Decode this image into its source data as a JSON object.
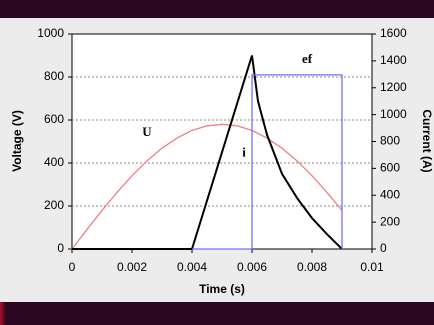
{
  "chart_data": {
    "type": "line",
    "x_label": "Time (s)",
    "y_label": "Voltage (V)",
    "y2_label": "Current (A)",
    "xlim": [
      0,
      0.01
    ],
    "xticks": [
      0,
      0.002,
      0.004,
      0.006,
      0.008,
      0.01
    ],
    "ylim": [
      0,
      1000
    ],
    "yticks": [
      0,
      200,
      400,
      600,
      800,
      1000
    ],
    "y2lim": [
      0,
      1600
    ],
    "y2ticks": [
      0,
      200,
      400,
      600,
      800,
      1000,
      1200,
      1400,
      1600
    ],
    "grid": true,
    "series": [
      {
        "name": "U",
        "color": "#f08080",
        "axis": "y",
        "x": [
          0,
          0.0005,
          0.001,
          0.0015,
          0.002,
          0.0025,
          0.003,
          0.0035,
          0.004,
          0.0045,
          0.005,
          0.0055,
          0.006,
          0.0065,
          0.007,
          0.0075,
          0.008,
          0.0085,
          0.009
        ],
        "values": [
          0,
          91,
          179,
          263,
          341,
          410,
          469,
          516,
          552,
          573,
          580,
          573,
          552,
          516,
          469,
          410,
          341,
          263,
          179
        ]
      },
      {
        "name": "i",
        "color": "#000000",
        "axis": "y2",
        "x": [
          0,
          0.004,
          0.006,
          0.0062,
          0.0065,
          0.007,
          0.0075,
          0.008,
          0.0085,
          0.009
        ],
        "values": [
          0,
          0,
          1440,
          1100,
          850,
          560,
          380,
          230,
          110,
          0
        ]
      },
      {
        "name": "ef",
        "color": "#7070ff",
        "axis": "y",
        "x": [
          0.004,
          0.006,
          0.006,
          0.009,
          0.009
        ],
        "values": [
          0,
          0,
          810,
          810,
          0
        ]
      }
    ]
  }
}
